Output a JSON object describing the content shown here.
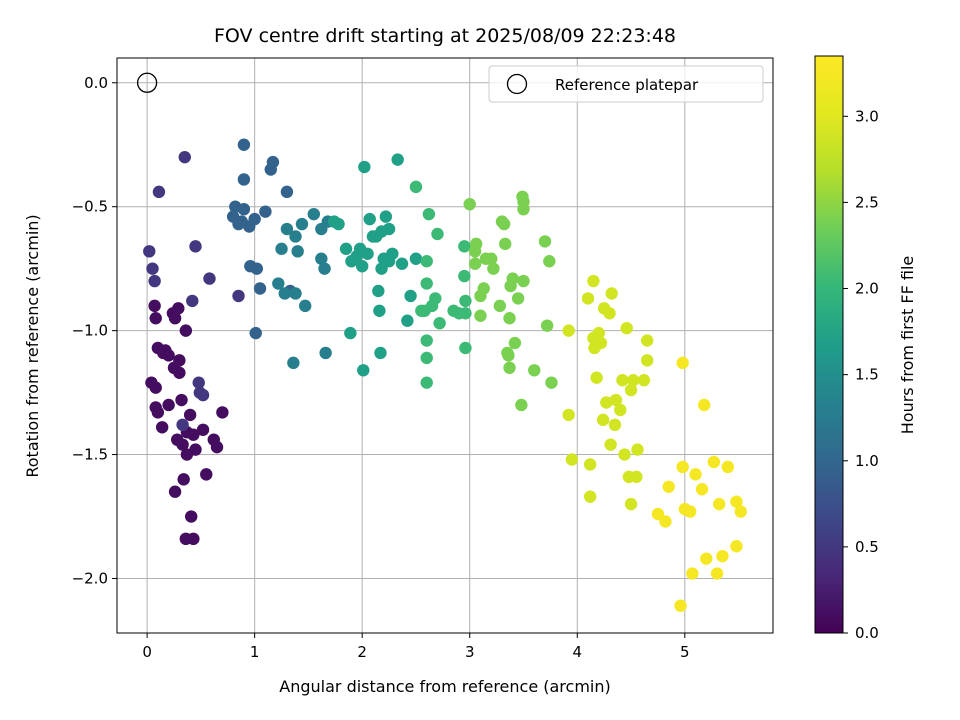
{
  "chart_data": {
    "type": "scatter",
    "title": "FOV centre drift starting at 2025/08/09 22:23:48",
    "xlabel": "Angular distance from reference (arcmin)",
    "ylabel": "Rotation from reference (arcmin)",
    "xlim": [
      -0.28,
      5.82
    ],
    "ylim": [
      -2.22,
      0.1
    ],
    "xticks": [
      0,
      1,
      2,
      3,
      4,
      5
    ],
    "yticks": [
      0.0,
      -0.5,
      -1.0,
      -1.5,
      -2.0
    ],
    "xtick_labels": [
      "0",
      "1",
      "2",
      "3",
      "4",
      "5"
    ],
    "ytick_labels": [
      "0.0",
      "−0.5",
      "−1.0",
      "−1.5",
      "−2.0"
    ],
    "grid": true,
    "legend": {
      "position": "top-right",
      "entries": [
        "Reference platepar"
      ]
    },
    "reference_point": {
      "x": 0,
      "y": 0
    },
    "colorbar": {
      "label": "Hours from first FF file",
      "colormap": "viridis",
      "range": [
        0.0,
        3.35
      ],
      "ticks": [
        0.0,
        0.5,
        1.0,
        1.5,
        2.0,
        2.5,
        3.0
      ],
      "tick_labels": [
        "0.0",
        "0.5",
        "1.0",
        "1.5",
        "2.0",
        "2.5",
        "3.0"
      ]
    },
    "series": [
      {
        "points": [
          [
            0.36,
            -1.84
          ],
          [
            0.43,
            -1.84
          ],
          [
            0.41,
            -1.75
          ],
          [
            0.34,
            -1.6
          ],
          [
            0.26,
            -1.65
          ],
          [
            0.55,
            -1.58
          ],
          [
            0.45,
            -1.48
          ],
          [
            0.52,
            -1.4
          ],
          [
            0.62,
            -1.44
          ],
          [
            0.65,
            -1.47
          ],
          [
            0.43,
            -1.42
          ],
          [
            0.37,
            -1.41
          ],
          [
            0.33,
            -1.46
          ],
          [
            0.28,
            -1.44
          ],
          [
            0.37,
            -1.5
          ],
          [
            0.4,
            -1.34
          ],
          [
            0.32,
            -1.28
          ],
          [
            0.7,
            -1.33
          ],
          [
            0.14,
            -1.39
          ],
          [
            0.2,
            -1.3
          ],
          [
            0.1,
            -1.33
          ],
          [
            0.08,
            -1.31
          ],
          [
            0.04,
            -1.21
          ],
          [
            0.08,
            -1.23
          ],
          [
            0.3,
            -1.12
          ],
          [
            0.25,
            -1.15
          ],
          [
            0.3,
            -1.17
          ],
          [
            0.2,
            -1.1
          ],
          [
            0.17,
            -1.08
          ],
          [
            0.1,
            -1.07
          ],
          [
            0.15,
            -1.09
          ],
          [
            0.26,
            -0.95
          ],
          [
            0.24,
            -0.93
          ],
          [
            0.29,
            -0.91
          ],
          [
            0.36,
            -1.0
          ],
          [
            0.07,
            -0.9
          ],
          [
            0.08,
            -0.95
          ]
        ],
        "hours": 0.1
      },
      {
        "points": [
          [
            0.48,
            -1.21
          ],
          [
            0.49,
            -1.25
          ],
          [
            0.52,
            -1.26
          ],
          [
            0.33,
            -1.38
          ],
          [
            0.42,
            -0.88
          ],
          [
            0.58,
            -0.79
          ],
          [
            0.45,
            -0.66
          ],
          [
            0.02,
            -0.68
          ],
          [
            0.05,
            -0.75
          ],
          [
            0.07,
            -0.8
          ],
          [
            0.11,
            -0.44
          ],
          [
            0.35,
            -0.3
          ],
          [
            0.85,
            -0.86
          ]
        ],
        "hours": 0.5
      },
      {
        "points": [
          [
            0.9,
            -0.25
          ],
          [
            0.9,
            -0.39
          ],
          [
            0.9,
            -0.51
          ],
          [
            0.8,
            -0.54
          ],
          [
            0.82,
            -0.5
          ],
          [
            0.85,
            -0.57
          ],
          [
            0.88,
            -0.56
          ],
          [
            0.95,
            -0.58
          ],
          [
            1.0,
            -0.55
          ],
          [
            0.96,
            -0.74
          ],
          [
            1.02,
            -0.75
          ],
          [
            1.05,
            -0.83
          ],
          [
            1.01,
            -1.01
          ],
          [
            1.1,
            -0.52
          ],
          [
            1.15,
            -0.35
          ],
          [
            1.17,
            -0.32
          ],
          [
            1.3,
            -0.44
          ],
          [
            1.33,
            -0.84
          ]
        ],
        "hours": 0.95
      },
      {
        "points": [
          [
            1.22,
            -0.81
          ],
          [
            1.25,
            -0.67
          ],
          [
            1.28,
            -0.85
          ],
          [
            1.3,
            -0.59
          ],
          [
            1.38,
            -0.85
          ],
          [
            1.36,
            -1.13
          ],
          [
            1.38,
            -0.62
          ],
          [
            1.4,
            -0.68
          ],
          [
            1.44,
            -0.57
          ],
          [
            1.47,
            -0.9
          ],
          [
            1.55,
            -0.53
          ],
          [
            1.62,
            -0.71
          ],
          [
            1.62,
            -0.59
          ],
          [
            1.65,
            -0.75
          ],
          [
            1.66,
            -1.09
          ],
          [
            1.68,
            -0.56
          ]
        ],
        "hours": 1.3
      },
      {
        "points": [
          [
            1.74,
            -0.56
          ],
          [
            1.78,
            -0.57
          ],
          [
            1.85,
            -0.67
          ],
          [
            1.89,
            -1.01
          ],
          [
            1.9,
            -0.72
          ],
          [
            1.95,
            -0.7
          ],
          [
            1.98,
            -0.67
          ],
          [
            2.0,
            -0.74
          ],
          [
            2.01,
            -1.16
          ],
          [
            2.05,
            -0.69
          ],
          [
            2.07,
            -0.55
          ],
          [
            2.1,
            -0.62
          ],
          [
            2.13,
            -0.62
          ],
          [
            2.15,
            -0.84
          ],
          [
            2.16,
            -0.92
          ],
          [
            2.17,
            -1.09
          ],
          [
            2.18,
            -0.75
          ],
          [
            2.2,
            -0.71
          ],
          [
            2.25,
            -0.59
          ],
          [
            2.28,
            -0.69
          ],
          [
            2.33,
            -0.31
          ],
          [
            2.37,
            -0.73
          ],
          [
            2.42,
            -0.96
          ],
          [
            2.45,
            -0.86
          ],
          [
            2.5,
            -0.71
          ],
          [
            2.02,
            -0.34
          ],
          [
            2.18,
            -0.6
          ],
          [
            2.22,
            -0.54
          ],
          [
            2.25,
            -0.72
          ]
        ],
        "hours": 1.7
      },
      {
        "points": [
          [
            2.5,
            -0.42
          ],
          [
            2.55,
            -0.92
          ],
          [
            2.58,
            -0.92
          ],
          [
            2.6,
            -0.72
          ],
          [
            2.6,
            -0.81
          ],
          [
            2.6,
            -1.04
          ],
          [
            2.6,
            -1.11
          ],
          [
            2.6,
            -1.21
          ],
          [
            2.62,
            -0.53
          ],
          [
            2.65,
            -0.9
          ],
          [
            2.68,
            -0.87
          ],
          [
            2.7,
            -0.61
          ],
          [
            2.72,
            -0.97
          ],
          [
            2.85,
            -0.92
          ],
          [
            2.9,
            -0.93
          ],
          [
            2.95,
            -0.66
          ],
          [
            2.95,
            -0.78
          ],
          [
            2.96,
            -0.88
          ],
          [
            2.96,
            -0.93
          ],
          [
            2.96,
            -1.07
          ]
        ],
        "hours": 2.05
      },
      {
        "points": [
          [
            3.0,
            -0.49
          ],
          [
            3.05,
            -0.68
          ],
          [
            3.05,
            -0.73
          ],
          [
            3.06,
            -0.65
          ],
          [
            3.1,
            -0.86
          ],
          [
            3.1,
            -0.94
          ],
          [
            3.13,
            -0.83
          ],
          [
            3.15,
            -0.71
          ],
          [
            3.2,
            -0.71
          ],
          [
            3.22,
            -0.75
          ],
          [
            3.28,
            -0.9
          ],
          [
            3.3,
            -0.56
          ],
          [
            3.32,
            -0.57
          ],
          [
            3.33,
            -0.65
          ],
          [
            3.35,
            -1.09
          ],
          [
            3.36,
            -1.1
          ],
          [
            3.37,
            -0.95
          ],
          [
            3.37,
            -1.15
          ],
          [
            3.38,
            -0.82
          ],
          [
            3.4,
            -0.79
          ],
          [
            3.42,
            -1.05
          ],
          [
            3.45,
            -0.87
          ],
          [
            3.48,
            -1.3
          ],
          [
            3.49,
            -0.46
          ],
          [
            3.5,
            -0.48
          ],
          [
            3.5,
            -0.51
          ],
          [
            3.5,
            -0.8
          ],
          [
            3.6,
            -1.16
          ],
          [
            3.7,
            -0.64
          ],
          [
            3.72,
            -0.98
          ],
          [
            3.74,
            -0.72
          ],
          [
            3.76,
            -1.21
          ]
        ],
        "hours": 2.4
      },
      {
        "points": [
          [
            3.92,
            -1.0
          ],
          [
            3.92,
            -1.34
          ],
          [
            3.95,
            -1.52
          ],
          [
            4.1,
            -0.87
          ],
          [
            4.12,
            -1.54
          ],
          [
            4.12,
            -1.67
          ],
          [
            4.15,
            -0.8
          ],
          [
            4.15,
            -1.03
          ],
          [
            4.16,
            -1.07
          ],
          [
            4.18,
            -1.19
          ],
          [
            4.2,
            -1.01
          ],
          [
            4.22,
            -1.05
          ],
          [
            4.24,
            -1.36
          ],
          [
            4.25,
            -0.91
          ],
          [
            4.27,
            -1.29
          ],
          [
            4.3,
            -0.93
          ],
          [
            4.31,
            -1.46
          ],
          [
            4.32,
            -0.85
          ],
          [
            4.36,
            -1.28
          ],
          [
            4.4,
            -1.32
          ],
          [
            4.42,
            -1.2
          ],
          [
            4.44,
            -1.5
          ],
          [
            4.46,
            -0.99
          ],
          [
            4.48,
            -1.59
          ],
          [
            4.5,
            -1.24
          ],
          [
            4.52,
            -1.2
          ],
          [
            4.55,
            -1.59
          ],
          [
            4.56,
            -1.48
          ],
          [
            4.62,
            -1.2
          ],
          [
            4.65,
            -1.04
          ],
          [
            4.65,
            -1.12
          ],
          [
            4.35,
            -1.38
          ],
          [
            4.5,
            -1.7
          ]
        ],
        "hours": 2.9
      },
      {
        "points": [
          [
            4.75,
            -1.74
          ],
          [
            4.82,
            -1.77
          ],
          [
            4.85,
            -1.63
          ],
          [
            4.98,
            -1.55
          ],
          [
            4.98,
            -1.13
          ],
          [
            5.0,
            -1.72
          ],
          [
            5.05,
            -1.73
          ],
          [
            5.07,
            -1.98
          ],
          [
            5.1,
            -1.58
          ],
          [
            5.16,
            -1.64
          ],
          [
            5.18,
            -1.3
          ],
          [
            5.2,
            -1.92
          ],
          [
            5.27,
            -1.53
          ],
          [
            5.3,
            -1.98
          ],
          [
            5.32,
            -1.7
          ],
          [
            5.35,
            -1.91
          ],
          [
            5.4,
            -1.55
          ],
          [
            5.48,
            -1.69
          ],
          [
            5.48,
            -1.87
          ],
          [
            5.52,
            -1.73
          ],
          [
            4.96,
            -2.11
          ]
        ],
        "hours": 3.25
      }
    ]
  }
}
